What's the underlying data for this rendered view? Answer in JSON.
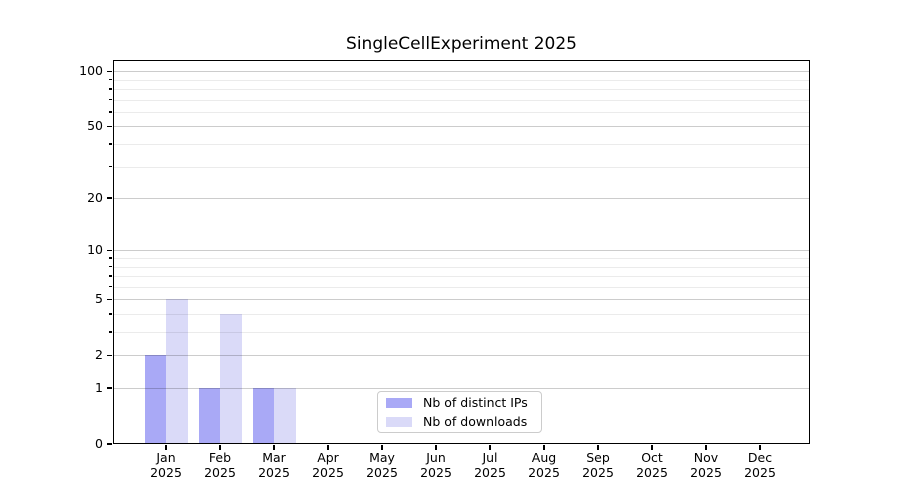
{
  "chart_data": {
    "type": "bar",
    "title": "SingleCellExperiment 2025",
    "year": "2025",
    "categories": [
      "Jan",
      "Feb",
      "Mar",
      "Apr",
      "May",
      "Jun",
      "Jul",
      "Aug",
      "Sep",
      "Oct",
      "Nov",
      "Dec"
    ],
    "series": [
      {
        "name": "Nb of distinct IPs",
        "color": "#a9a9f6",
        "values": [
          2,
          1,
          1,
          0,
          0,
          0,
          0,
          0,
          0,
          0,
          0,
          0
        ]
      },
      {
        "name": "Nb of downloads",
        "color": "#dadaf8",
        "values": [
          5,
          4,
          1,
          0,
          0,
          0,
          0,
          0,
          0,
          0,
          0,
          0
        ]
      }
    ],
    "xlabel": "",
    "ylabel": "",
    "yscale": "log1p",
    "ylim": [
      0,
      115
    ],
    "yticks_major": [
      0,
      1,
      2,
      5,
      10,
      20,
      50,
      100
    ],
    "yticks_minor": [
      3,
      4,
      6,
      7,
      8,
      9,
      30,
      40,
      60,
      70,
      80,
      90
    ],
    "grid": true,
    "legend_position": "inside-bottom-center"
  }
}
